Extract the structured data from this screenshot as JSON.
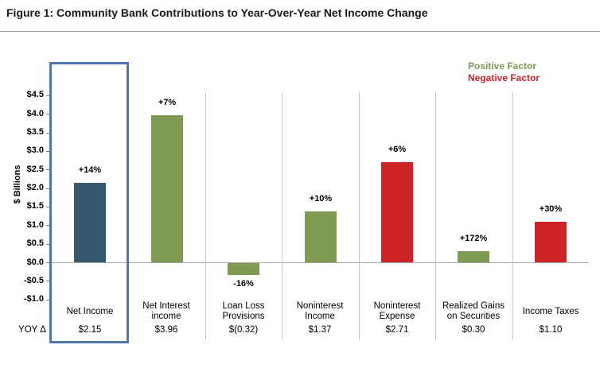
{
  "title": "Figure 1: Community Bank Contributions to Year-Over-Year Net Income Change",
  "legend": {
    "items": [
      {
        "label": "Positive Factor",
        "color": "#7d9b53"
      },
      {
        "label": "Negative Factor",
        "color": "#cc2327"
      }
    ]
  },
  "yoy_label": "YOY Δ",
  "colors": {
    "net": "#36596f",
    "positive": "#7e9a53",
    "negative": "#cc2327",
    "highlight_border": "#4e78ac",
    "divider": "#c5c5c5",
    "zero_line": "#a8a8a8"
  },
  "chart_data": {
    "type": "bar",
    "title": "Figure 1: Community Bank Contributions to Year-Over-Year Net Income Change",
    "xlabel": "",
    "ylabel": "$ Billions",
    "ylim": [
      -1.0,
      4.5
    ],
    "ytick_step": 0.5,
    "grid": "zero-line-only",
    "legend_position": "top-right",
    "yticks": [
      {
        "label": "$4.5",
        "value": 4.5
      },
      {
        "label": "$4.0",
        "value": 4.0
      },
      {
        "label": "$3.5",
        "value": 3.5
      },
      {
        "label": "$3.0",
        "value": 3.0
      },
      {
        "label": "$2.5",
        "value": 2.5
      },
      {
        "label": "$2.0",
        "value": 2.0
      },
      {
        "label": "$1.5",
        "value": 1.5
      },
      {
        "label": "$1.0",
        "value": 1.0
      },
      {
        "label": "$0.5",
        "value": 0.5
      },
      {
        "label": "$0.0",
        "value": 0.0
      },
      {
        "label": "-$0.5",
        "value": -0.5
      },
      {
        "label": "-$1.0",
        "value": -1.0
      }
    ],
    "categories": [
      "Net Income",
      "Net Interest\nincome",
      "Loan Loss\nProvisions",
      "Noninterest\nIncome",
      "Noninterest\nExpense",
      "Realized Gains\non Securities",
      "Income Taxes"
    ],
    "values": [
      2.15,
      3.96,
      -0.32,
      1.37,
      2.71,
      0.3,
      1.1
    ],
    "pct_change": [
      "+14%",
      "+7%",
      "-16%",
      "+10%",
      "+6%",
      "+172%",
      "+30%"
    ],
    "value_labels": [
      "$2.15",
      "$3.96",
      "$(0.32)",
      "$1.37",
      "$2.71",
      "$0.30",
      "$1.10"
    ],
    "bar_types": [
      "net",
      "positive",
      "positive",
      "positive",
      "negative",
      "positive",
      "negative"
    ],
    "highlighted_category": "Net Income"
  }
}
